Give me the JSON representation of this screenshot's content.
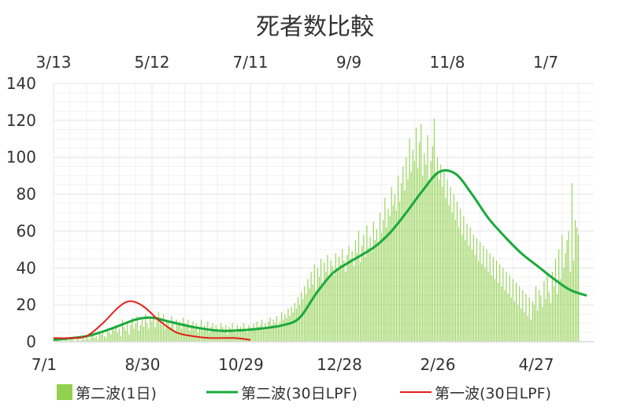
{
  "chart_data": {
    "type": "bar",
    "title": "死者数比較",
    "ylim": [
      0,
      140
    ],
    "y_ticks": [
      "0",
      "20",
      "40",
      "60",
      "80",
      "100",
      "120",
      "140"
    ],
    "y_tick_values": [
      0,
      20,
      40,
      60,
      80,
      100,
      120,
      140
    ],
    "bottom_axis": {
      "labels": [
        "7/1",
        "8/30",
        "10/29",
        "12/28",
        "2/26",
        "4/27"
      ],
      "day_index": [
        0,
        60,
        120,
        180,
        240,
        300
      ]
    },
    "top_axis": {
      "labels": [
        "3/13",
        "5/12",
        "7/11",
        "9/9",
        "11/8",
        "1/7"
      ],
      "day_index": [
        0,
        60,
        120,
        180,
        240,
        300
      ]
    },
    "colors": {
      "daily": "#92d050",
      "wave2_lpf": "#1aaa3c",
      "wave1_lpf": "#e3201b",
      "grid": "#e6e6e6",
      "axis": "#d9d9d9"
    },
    "series": [
      {
        "name": "第二波(1日)",
        "kind": "bar",
        "axis": "bottom",
        "x_start": 0,
        "values": [
          1,
          0,
          2,
          1,
          0,
          1,
          0,
          2,
          1,
          0,
          1,
          2,
          1,
          0,
          1,
          2,
          0,
          1,
          2,
          1,
          3,
          2,
          1,
          3,
          4,
          2,
          3,
          1,
          5,
          4,
          6,
          3,
          2,
          7,
          5,
          4,
          8,
          6,
          9,
          5,
          7,
          3,
          12,
          8,
          6,
          11,
          4,
          9,
          13,
          7,
          10,
          14,
          6,
          9,
          12,
          8,
          15,
          10,
          7,
          13,
          11,
          14,
          8,
          12,
          16,
          10,
          9,
          15,
          7,
          12,
          11,
          8,
          14,
          10,
          6,
          12,
          9,
          11,
          7,
          13,
          10,
          8,
          12,
          6,
          9,
          11,
          7,
          10,
          5,
          8,
          12,
          6,
          9,
          7,
          11,
          5,
          8,
          10,
          6,
          9,
          7,
          5,
          10,
          8,
          6,
          9,
          4,
          8,
          7,
          10,
          6,
          5,
          9,
          7,
          8,
          6,
          10,
          7,
          5,
          9,
          8,
          6,
          10,
          7,
          11,
          8,
          9,
          12,
          7,
          10,
          8,
          11,
          13,
          9,
          12,
          10,
          14,
          9,
          11,
          16,
          12,
          15,
          13,
          18,
          14,
          19,
          16,
          21,
          18,
          24,
          20,
          27,
          23,
          30,
          26,
          34,
          29,
          38,
          31,
          42,
          28,
          40,
          35,
          45,
          32,
          43,
          38,
          47,
          34,
          44,
          41,
          36,
          48,
          39,
          46,
          42,
          50,
          44,
          38,
          47,
          52,
          45,
          49,
          41,
          55,
          48,
          60,
          43,
          52,
          58,
          46,
          63,
          51,
          57,
          49,
          65,
          55,
          61,
          53,
          70,
          59,
          66,
          78,
          62,
          72,
          68,
          84,
          74,
          80,
          71,
          90,
          76,
          86,
          95,
          82,
          100,
          88,
          110,
          92,
          104,
          98,
          116,
          94,
          108,
          118,
          90,
          102,
          96,
          112,
          86,
          98,
          106,
          121,
          92,
          100,
          88,
          96,
          84,
          92,
          78,
          88,
          74,
          84,
          70,
          80,
          66,
          76,
          62,
          72,
          58,
          68,
          55,
          64,
          52,
          62,
          50,
          58,
          47,
          56,
          44,
          54,
          42,
          52,
          40,
          50,
          38,
          48,
          36,
          46,
          34,
          44,
          32,
          42,
          30,
          40,
          28,
          38,
          26,
          36,
          24,
          34,
          22,
          32,
          20,
          30,
          18,
          28,
          16,
          26,
          14,
          24,
          12,
          22,
          20,
          30,
          17,
          28,
          25,
          19,
          33,
          23,
          36,
          27,
          21,
          38,
          30,
          45,
          26,
          50,
          34,
          58,
          40,
          48,
          55,
          60,
          38,
          86,
          44,
          66,
          62,
          58
        ]
      },
      {
        "name": "第二波(30日LPF)",
        "kind": "line",
        "axis": "bottom",
        "points": [
          [
            0,
            1
          ],
          [
            20,
            3
          ],
          [
            35,
            7
          ],
          [
            50,
            12
          ],
          [
            60,
            13
          ],
          [
            70,
            11
          ],
          [
            85,
            8
          ],
          [
            100,
            6
          ],
          [
            110,
            6
          ],
          [
            125,
            7
          ],
          [
            140,
            9
          ],
          [
            150,
            13
          ],
          [
            160,
            26
          ],
          [
            170,
            37
          ],
          [
            180,
            43
          ],
          [
            195,
            51
          ],
          [
            205,
            59
          ],
          [
            215,
            70
          ],
          [
            225,
            82
          ],
          [
            235,
            92
          ],
          [
            245,
            91
          ],
          [
            255,
            80
          ],
          [
            265,
            67
          ],
          [
            275,
            57
          ],
          [
            285,
            48
          ],
          [
            295,
            41
          ],
          [
            305,
            34
          ],
          [
            315,
            28
          ],
          [
            325,
            25
          ]
        ]
      },
      {
        "name": "第一波(30日LPF)",
        "kind": "line",
        "axis": "top",
        "points": [
          [
            0,
            2
          ],
          [
            10,
            2
          ],
          [
            20,
            3
          ],
          [
            30,
            10
          ],
          [
            40,
            19
          ],
          [
            47,
            22
          ],
          [
            55,
            19
          ],
          [
            65,
            11
          ],
          [
            75,
            5
          ],
          [
            85,
            3
          ],
          [
            95,
            2
          ],
          [
            110,
            2
          ],
          [
            120,
            1
          ]
        ]
      }
    ]
  }
}
